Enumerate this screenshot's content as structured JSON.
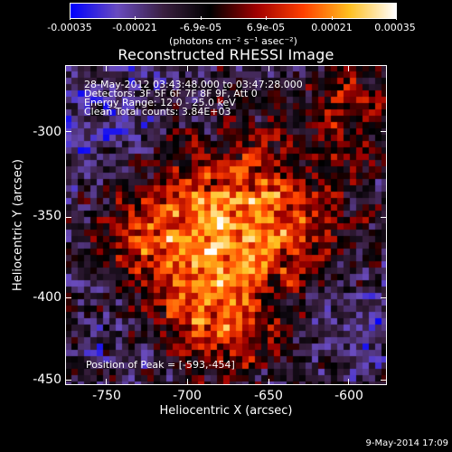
{
  "colorbar": {
    "tick_labels": [
      "-0.00035",
      "-0.00021",
      "-6.9e-05",
      "6.9e-05",
      "0.00021",
      "0.00035"
    ],
    "units": "(photons cm⁻² s⁻¹ asec⁻²)",
    "colormap": [
      "#0000ff",
      "#6a4cc0",
      "#3a2040",
      "#000000",
      "#a00000",
      "#ff4000",
      "#ffc020",
      "#ffffff"
    ]
  },
  "title": "Reconstructed RHESSI Image",
  "info": {
    "line1": "28-May-2012 03:43:48.000 to 03:47:28.000",
    "line2": "Detectors: 3F 5F 6F 7F 8F 9F, Att 0",
    "line3": "Energy Range: 12.0 - 25.0 keV",
    "line4": "Clean     Total counts: 3.84E+03"
  },
  "axes": {
    "xlabel": "Heliocentric X (arcsec)",
    "ylabel": "Heliocentric Y (arcsec)",
    "x_ticks": [
      "-750",
      "-700",
      "-650",
      "-600"
    ],
    "y_ticks": [
      "-300",
      "-350",
      "-400",
      "-450"
    ],
    "xlim": [
      -772,
      -578
    ],
    "ylim": [
      -452,
      -263
    ]
  },
  "peak_text": "Position of Peak = [-593,-454]",
  "timestamp": "9-May-2014 17:09"
}
